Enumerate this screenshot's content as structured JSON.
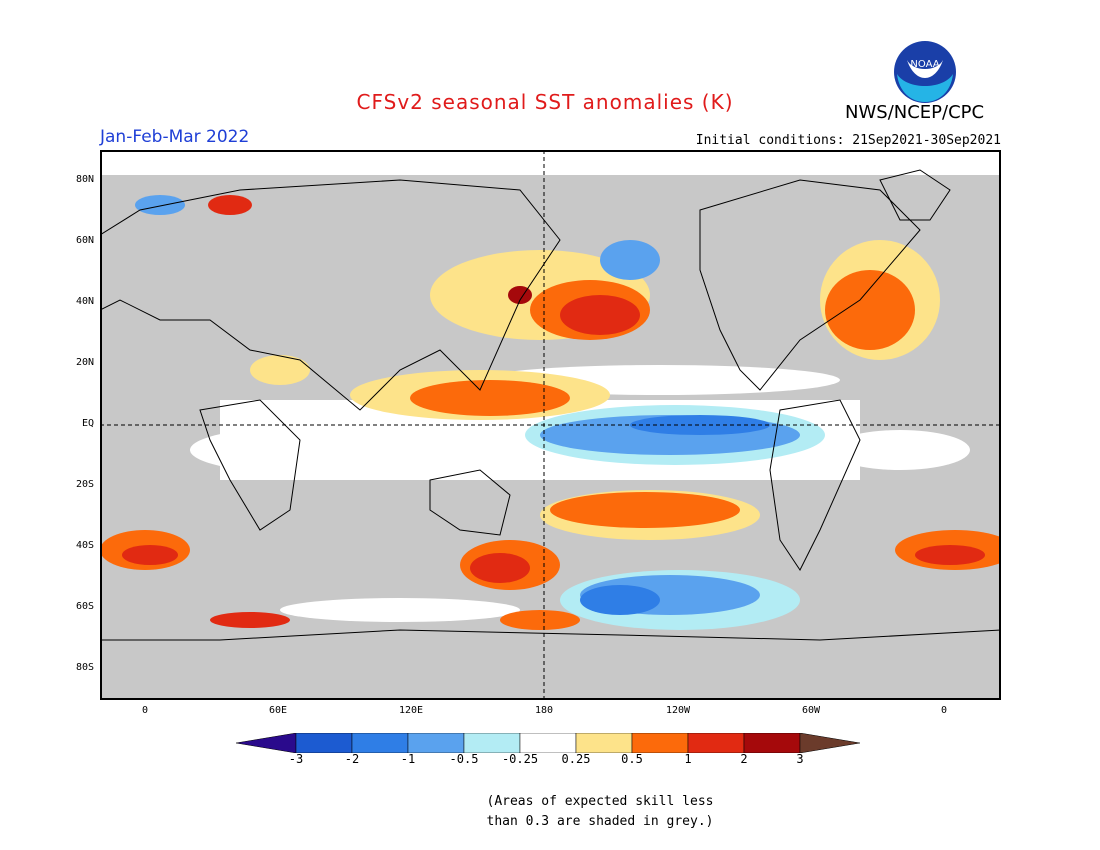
{
  "title": "CFSv2 seasonal SST anomalies (K)",
  "agency": "NWS/NCEP/CPC",
  "logo_text": "NOAA",
  "season": "Jan-Feb-Mar 2022",
  "initial_conditions": "Initial conditions: 21Sep2021-30Sep2021",
  "lat_labels": [
    "80N",
    "60N",
    "40N",
    "20N",
    "EQ",
    "20S",
    "40S",
    "60S",
    "80S"
  ],
  "lon_labels": [
    "0",
    "60E",
    "120E",
    "180",
    "120W",
    "60W",
    "0"
  ],
  "colorbar": {
    "labels": [
      "-3",
      "-2",
      "-1",
      "-0.5",
      "-0.25",
      "0.25",
      "0.5",
      "1",
      "2",
      "3"
    ],
    "colors": [
      "#2a0a8c",
      "#1c5bd1",
      "#2f7ee6",
      "#5aa2ee",
      "#b3ecf4",
      "#ffffff",
      "#fde38a",
      "#fc6a0b",
      "#e12a12",
      "#a5090b",
      "#6b3b2b"
    ]
  },
  "colors": {
    "land": "#c8c8c8",
    "title": "#e01b1b",
    "season": "#1f3fd6"
  },
  "note_lines": [
    "(Areas of expected skill less",
    "than 0.3 are shaded in grey.)"
  ]
}
